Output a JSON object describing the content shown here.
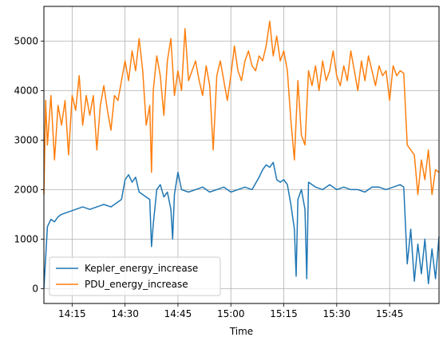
{
  "chart_data": {
    "type": "line",
    "title": "",
    "xlabel": "Time",
    "ylabel": "",
    "x_range": [
      "14:07",
      "15:59"
    ],
    "ylim": [
      -300,
      5700
    ],
    "x_ticks": [
      "14:15",
      "14:30",
      "14:45",
      "15:00",
      "15:15",
      "15:30",
      "15:45"
    ],
    "y_ticks": [
      0,
      1000,
      2000,
      3000,
      4000,
      5000
    ],
    "grid": true,
    "legend_position": "lower-left",
    "series": [
      {
        "name": "Kepler_energy_increase",
        "color": "#1f77b4",
        "points": [
          [
            "14:07",
            0
          ],
          [
            "14:08",
            1250
          ],
          [
            "14:09",
            1400
          ],
          [
            "14:10",
            1350
          ],
          [
            "14:11",
            1450
          ],
          [
            "14:12",
            1500
          ],
          [
            "14:14",
            1550
          ],
          [
            "14:16",
            1600
          ],
          [
            "14:18",
            1650
          ],
          [
            "14:20",
            1600
          ],
          [
            "14:22",
            1650
          ],
          [
            "14:24",
            1700
          ],
          [
            "14:26",
            1650
          ],
          [
            "14:28",
            1750
          ],
          [
            "14:29",
            1800
          ],
          [
            "14:30",
            2200
          ],
          [
            "14:31",
            2300
          ],
          [
            "14:32",
            2150
          ],
          [
            "14:33",
            2250
          ],
          [
            "14:34",
            1950
          ],
          [
            "14:35",
            1900
          ],
          [
            "14:36",
            1850
          ],
          [
            "14:37",
            1800
          ],
          [
            "14:37.5",
            850
          ],
          [
            "14:38",
            1300
          ],
          [
            "14:39",
            2000
          ],
          [
            "14:40",
            2100
          ],
          [
            "14:41",
            1850
          ],
          [
            "14:42",
            1950
          ],
          [
            "14:43",
            1600
          ],
          [
            "14:43.5",
            1000
          ],
          [
            "14:44",
            1900
          ],
          [
            "14:45",
            2350
          ],
          [
            "14:46",
            2000
          ],
          [
            "14:48",
            1950
          ],
          [
            "14:50",
            2000
          ],
          [
            "14:52",
            2050
          ],
          [
            "14:54",
            1950
          ],
          [
            "14:56",
            2000
          ],
          [
            "14:58",
            2050
          ],
          [
            "15:00",
            1950
          ],
          [
            "15:02",
            2000
          ],
          [
            "15:04",
            2050
          ],
          [
            "15:06",
            2000
          ],
          [
            "15:08",
            2250
          ],
          [
            "15:09",
            2400
          ],
          [
            "15:10",
            2500
          ],
          [
            "15:11",
            2450
          ],
          [
            "15:12",
            2550
          ],
          [
            "15:13",
            2200
          ],
          [
            "15:14",
            2150
          ],
          [
            "15:15",
            2200
          ],
          [
            "15:16",
            2100
          ],
          [
            "15:17",
            1700
          ],
          [
            "15:18",
            1200
          ],
          [
            "15:18.5",
            250
          ],
          [
            "15:19",
            1800
          ],
          [
            "15:20",
            2000
          ],
          [
            "15:21",
            1600
          ],
          [
            "15:21.5",
            200
          ],
          [
            "15:22",
            2150
          ],
          [
            "15:24",
            2050
          ],
          [
            "15:26",
            2000
          ],
          [
            "15:28",
            2100
          ],
          [
            "15:30",
            2000
          ],
          [
            "15:32",
            2050
          ],
          [
            "15:34",
            2000
          ],
          [
            "15:36",
            2000
          ],
          [
            "15:38",
            1950
          ],
          [
            "15:40",
            2050
          ],
          [
            "15:42",
            2050
          ],
          [
            "15:44",
            2000
          ],
          [
            "15:46",
            2050
          ],
          [
            "15:48",
            2100
          ],
          [
            "15:49",
            2050
          ],
          [
            "15:50",
            500
          ],
          [
            "15:51",
            1200
          ],
          [
            "15:52",
            150
          ],
          [
            "15:53",
            900
          ],
          [
            "15:54",
            300
          ],
          [
            "15:55",
            1000
          ],
          [
            "15:56",
            100
          ],
          [
            "15:57",
            800
          ],
          [
            "15:58",
            200
          ],
          [
            "15:59",
            1050
          ]
        ]
      },
      {
        "name": "PDU_energy_increase",
        "color": "#ff7f0e",
        "points": [
          [
            "14:07",
            1900
          ],
          [
            "14:07.5",
            3800
          ],
          [
            "14:08",
            2900
          ],
          [
            "14:09",
            3900
          ],
          [
            "14:10",
            2600
          ],
          [
            "14:11",
            3700
          ],
          [
            "14:12",
            3300
          ],
          [
            "14:13",
            3800
          ],
          [
            "14:14",
            2700
          ],
          [
            "14:15",
            3900
          ],
          [
            "14:16",
            3600
          ],
          [
            "14:17",
            4300
          ],
          [
            "14:18",
            3300
          ],
          [
            "14:19",
            3900
          ],
          [
            "14:20",
            3500
          ],
          [
            "14:21",
            3900
          ],
          [
            "14:22",
            2800
          ],
          [
            "14:23",
            3700
          ],
          [
            "14:24",
            4100
          ],
          [
            "14:25",
            3600
          ],
          [
            "14:26",
            3200
          ],
          [
            "14:27",
            3900
          ],
          [
            "14:28",
            3800
          ],
          [
            "14:29",
            4200
          ],
          [
            "14:30",
            4600
          ],
          [
            "14:31",
            4200
          ],
          [
            "14:32",
            4800
          ],
          [
            "14:33",
            4400
          ],
          [
            "14:34",
            5050
          ],
          [
            "14:35",
            4400
          ],
          [
            "14:36",
            3300
          ],
          [
            "14:37",
            3700
          ],
          [
            "14:37.5",
            2350
          ],
          [
            "14:38",
            4000
          ],
          [
            "14:39",
            4700
          ],
          [
            "14:40",
            4300
          ],
          [
            "14:41",
            3500
          ],
          [
            "14:42",
            4600
          ],
          [
            "14:43",
            5050
          ],
          [
            "14:44",
            3900
          ],
          [
            "14:45",
            4400
          ],
          [
            "14:46",
            4000
          ],
          [
            "14:47",
            5250
          ],
          [
            "14:48",
            4200
          ],
          [
            "14:49",
            4400
          ],
          [
            "14:50",
            4600
          ],
          [
            "14:51",
            4200
          ],
          [
            "14:52",
            3900
          ],
          [
            "14:53",
            4500
          ],
          [
            "14:54",
            4100
          ],
          [
            "14:55",
            2800
          ],
          [
            "14:56",
            4300
          ],
          [
            "14:57",
            4600
          ],
          [
            "14:58",
            4200
          ],
          [
            "14:59",
            3800
          ],
          [
            "15:00",
            4300
          ],
          [
            "15:01",
            4900
          ],
          [
            "15:02",
            4400
          ],
          [
            "15:03",
            4200
          ],
          [
            "15:04",
            4600
          ],
          [
            "15:05",
            4800
          ],
          [
            "15:06",
            4500
          ],
          [
            "15:07",
            4400
          ],
          [
            "15:08",
            4700
          ],
          [
            "15:09",
            4600
          ],
          [
            "15:10",
            4900
          ],
          [
            "15:11",
            5400
          ],
          [
            "15:12",
            4700
          ],
          [
            "15:13",
            5100
          ],
          [
            "15:14",
            4600
          ],
          [
            "15:15",
            4800
          ],
          [
            "15:16",
            4400
          ],
          [
            "15:17",
            3400
          ],
          [
            "15:18",
            2600
          ],
          [
            "15:19",
            4200
          ],
          [
            "15:20",
            3100
          ],
          [
            "15:21",
            2900
          ],
          [
            "15:22",
            4400
          ],
          [
            "15:23",
            4100
          ],
          [
            "15:24",
            4500
          ],
          [
            "15:25",
            4000
          ],
          [
            "15:26",
            4600
          ],
          [
            "15:27",
            4200
          ],
          [
            "15:28",
            4400
          ],
          [
            "15:29",
            4800
          ],
          [
            "15:30",
            4300
          ],
          [
            "15:31",
            4100
          ],
          [
            "15:32",
            4500
          ],
          [
            "15:33",
            4200
          ],
          [
            "15:34",
            4800
          ],
          [
            "15:35",
            4400
          ],
          [
            "15:36",
            4000
          ],
          [
            "15:37",
            4600
          ],
          [
            "15:38",
            4200
          ],
          [
            "15:39",
            4700
          ],
          [
            "15:40",
            4400
          ],
          [
            "15:41",
            4100
          ],
          [
            "15:42",
            4500
          ],
          [
            "15:43",
            4300
          ],
          [
            "15:44",
            4400
          ],
          [
            "15:45",
            3800
          ],
          [
            "15:46",
            4500
          ],
          [
            "15:47",
            4300
          ],
          [
            "15:48",
            4400
          ],
          [
            "15:49",
            4350
          ],
          [
            "15:50",
            2900
          ],
          [
            "15:51",
            2800
          ],
          [
            "15:52",
            2700
          ],
          [
            "15:53",
            1900
          ],
          [
            "15:54",
            2600
          ],
          [
            "15:55",
            2200
          ],
          [
            "15:56",
            2800
          ],
          [
            "15:57",
            1900
          ],
          [
            "15:58",
            2400
          ],
          [
            "15:59",
            2350
          ]
        ]
      }
    ]
  }
}
